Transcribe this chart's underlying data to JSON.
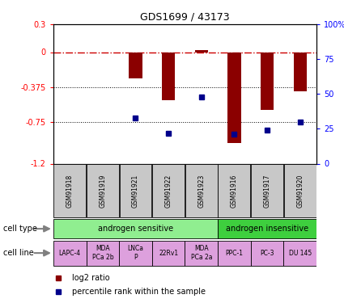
{
  "title": "GDS1699 / 43173",
  "samples": [
    "GSM91918",
    "GSM91919",
    "GSM91921",
    "GSM91922",
    "GSM91923",
    "GSM91916",
    "GSM91917",
    "GSM91920"
  ],
  "log2_ratio": [
    0.0,
    0.0,
    -0.28,
    -0.52,
    0.02,
    -0.98,
    -0.62,
    -0.42
  ],
  "percentile_rank": [
    null,
    null,
    33,
    22,
    48,
    21,
    24,
    30
  ],
  "ylim_left": [
    -1.2,
    0.3
  ],
  "ylim_right": [
    0,
    100
  ],
  "left_ticks": [
    0.3,
    0,
    -0.375,
    -0.75,
    -1.2
  ],
  "right_tick_positions": [
    100,
    75,
    50,
    25,
    0
  ],
  "bar_color": "#8B0000",
  "dot_color": "#00008B",
  "zero_line_color": "#CC0000",
  "cell_type_groups": [
    {
      "label": "androgen sensitive",
      "start": 0,
      "end": 5,
      "color": "#90EE90"
    },
    {
      "label": "androgen insensitive",
      "start": 5,
      "end": 8,
      "color": "#3ECF3E"
    }
  ],
  "cell_lines": [
    {
      "label": "LAPC-4",
      "start": 0,
      "end": 1
    },
    {
      "label": "MDA\nPCa 2b",
      "start": 1,
      "end": 2
    },
    {
      "label": "LNCa\nP",
      "start": 2,
      "end": 3
    },
    {
      "label": "22Rv1",
      "start": 3,
      "end": 4
    },
    {
      "label": "MDA\nPCa 2a",
      "start": 4,
      "end": 5
    },
    {
      "label": "PPC-1",
      "start": 5,
      "end": 6
    },
    {
      "label": "PC-3",
      "start": 6,
      "end": 7
    },
    {
      "label": "DU 145",
      "start": 7,
      "end": 8
    }
  ],
  "cell_line_color": "#DDA0DD",
  "gsm_box_color": "#C8C8C8",
  "legend_items": [
    {
      "label": "log2 ratio",
      "color": "#8B0000"
    },
    {
      "label": "percentile rank within the sample",
      "color": "#00008B"
    }
  ],
  "fig_width": 4.25,
  "fig_height": 3.75
}
